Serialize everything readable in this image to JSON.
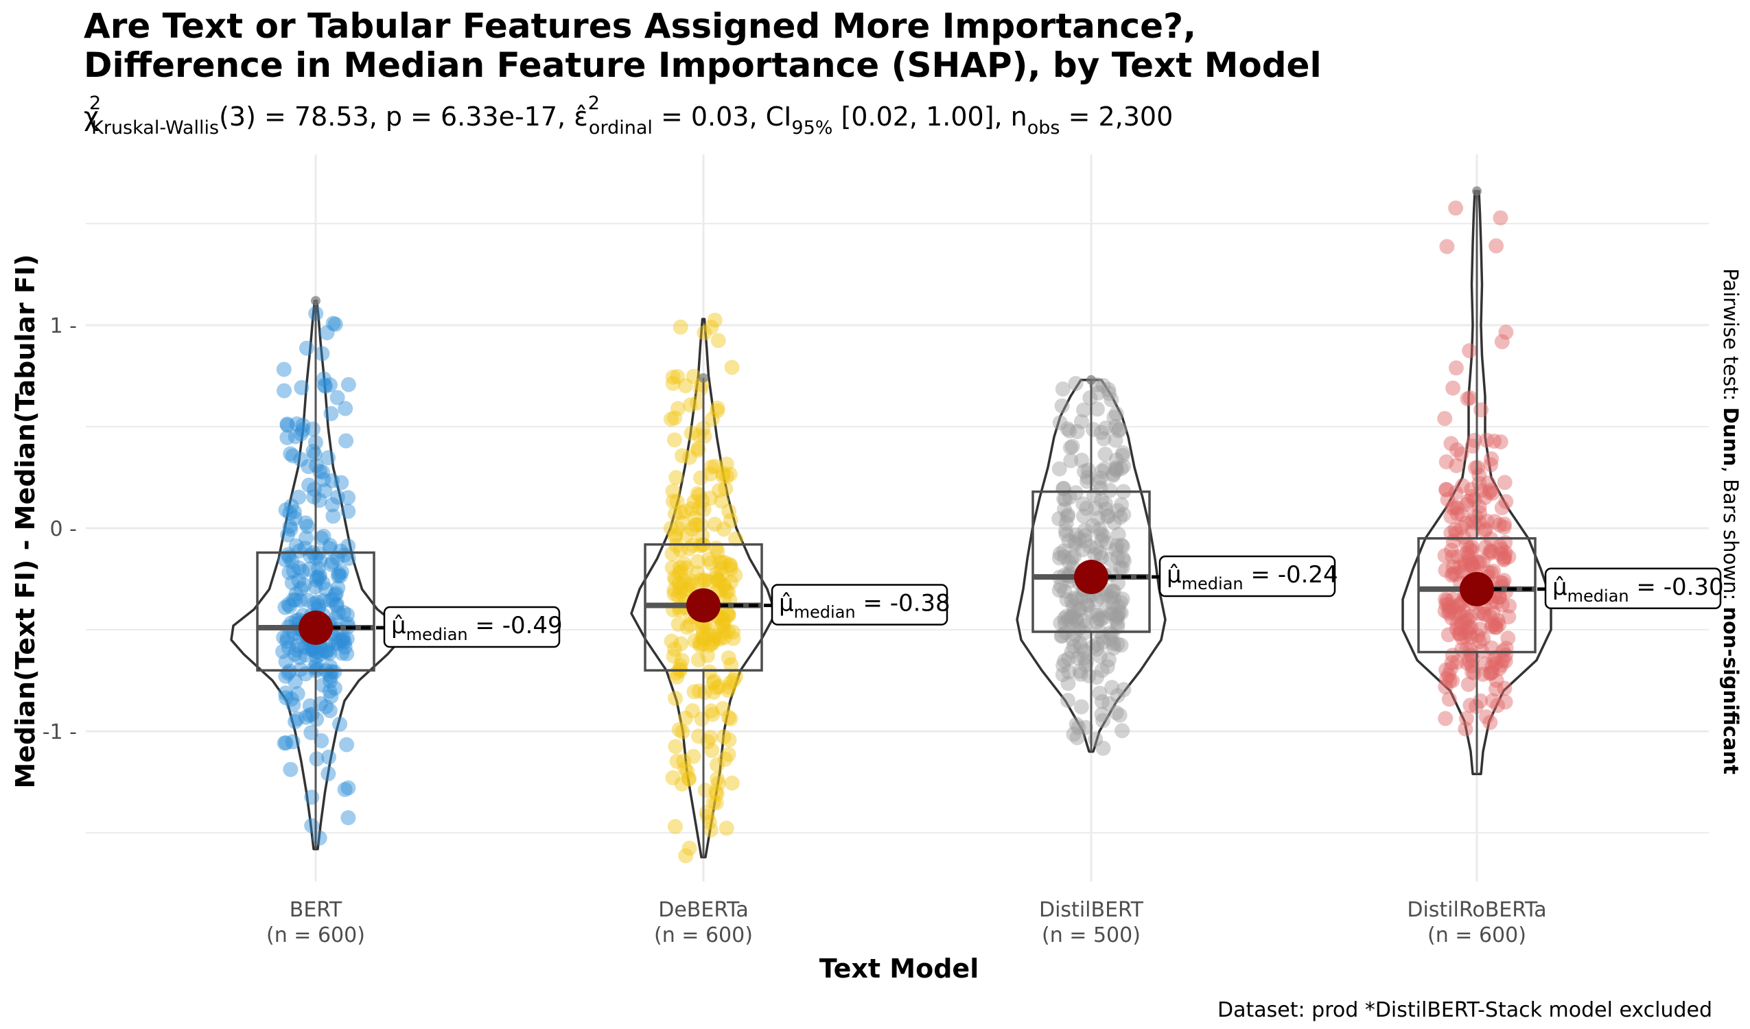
{
  "chart_data": {
    "type": "violin",
    "title_line1": "Are Text or Tabular Features Assigned More Importance?,",
    "title_line2": "Difference in Median Feature Importance (SHAP), by Text Model",
    "subtitle": {
      "chi": "χ",
      "chi_sup": "2",
      "test_sub": "Kruskal-Wallis",
      "stat": "(3) = 78.53, p = 6.33e-17, ",
      "eps": "ε̂",
      "eps_sup": "2",
      "eps_sub": "ordinal",
      "eps_val": " = 0.03, CI",
      "ci_sub": "95%",
      "ci_val": " [0.02, 1.00], n",
      "n_sub": "obs",
      "n_val": " = 2,300"
    },
    "xlabel": "Text Model",
    "ylabel": "Median(Text FI) - Median(Tabular FI)",
    "ylim": [
      -1.75,
      1.75
    ],
    "yticks": [
      -1,
      0,
      1
    ],
    "ytick_labels": [
      "-1 -",
      "0 -",
      "1 -"
    ],
    "grid": true,
    "side_label": {
      "prefix": "Pairwise test: ",
      "test": "Dunn",
      "middle": ", Bars shown: ",
      "bars": "non-significant"
    },
    "caption": "Dataset:  prod *DistilBERT-Stack model excluded",
    "median_label_prefix": "μ̂",
    "median_label_sub": "median",
    "groups": [
      {
        "name": "BERT",
        "n_label": "(n = 600)",
        "color": "#2F8FD8",
        "median": -0.49,
        "median_label": " = -0.49",
        "q1": -0.7,
        "q3": -0.12,
        "whisker_low": -1.58,
        "whisker_high": 1.12,
        "min": -1.58,
        "max": 1.12,
        "density": [
          [
            -1.58,
            0.02
          ],
          [
            -1.45,
            0.05
          ],
          [
            -1.3,
            0.09
          ],
          [
            -1.15,
            0.14
          ],
          [
            -1.0,
            0.2
          ],
          [
            -0.85,
            0.28
          ],
          [
            -0.75,
            0.42
          ],
          [
            -0.62,
            0.7
          ],
          [
            -0.55,
            0.82
          ],
          [
            -0.48,
            0.8
          ],
          [
            -0.4,
            0.6
          ],
          [
            -0.3,
            0.45
          ],
          [
            -0.15,
            0.36
          ],
          [
            0.0,
            0.3
          ],
          [
            0.15,
            0.24
          ],
          [
            0.3,
            0.17
          ],
          [
            0.5,
            0.12
          ],
          [
            0.7,
            0.09
          ],
          [
            0.9,
            0.05
          ],
          [
            1.05,
            0.025
          ],
          [
            1.12,
            0.01
          ]
        ],
        "jitter_seed": 11
      },
      {
        "name": "DeBERTa",
        "n_label": "(n = 600)",
        "color": "#F2C516",
        "median": -0.38,
        "median_label": " = -0.38",
        "q1": -0.7,
        "q3": -0.08,
        "whisker_low": -1.62,
        "whisker_high": 0.74,
        "min": -1.62,
        "max": 1.03,
        "density": [
          [
            -1.62,
            0.02
          ],
          [
            -1.5,
            0.06
          ],
          [
            -1.35,
            0.11
          ],
          [
            -1.2,
            0.16
          ],
          [
            -1.0,
            0.2
          ],
          [
            -0.85,
            0.26
          ],
          [
            -0.7,
            0.36
          ],
          [
            -0.55,
            0.56
          ],
          [
            -0.42,
            0.7
          ],
          [
            -0.3,
            0.62
          ],
          [
            -0.15,
            0.45
          ],
          [
            0.0,
            0.32
          ],
          [
            0.15,
            0.24
          ],
          [
            0.3,
            0.18
          ],
          [
            0.45,
            0.13
          ],
          [
            0.6,
            0.09
          ],
          [
            0.75,
            0.05
          ],
          [
            0.9,
            0.03
          ],
          [
            1.03,
            0.01
          ]
        ],
        "jitter_seed": 23
      },
      {
        "name": "DistilBERT",
        "n_label": "(n = 500)",
        "color": "#9E9E9E",
        "median": -0.24,
        "median_label": " = -0.24",
        "q1": -0.51,
        "q3": 0.18,
        "whisker_low": -1.1,
        "whisker_high": 0.73,
        "min": -1.1,
        "max": 0.73,
        "density": [
          [
            -1.1,
            0.02
          ],
          [
            -1.0,
            0.08
          ],
          [
            -0.85,
            0.25
          ],
          [
            -0.7,
            0.48
          ],
          [
            -0.55,
            0.68
          ],
          [
            -0.45,
            0.72
          ],
          [
            -0.3,
            0.66
          ],
          [
            -0.15,
            0.62
          ],
          [
            0.0,
            0.57
          ],
          [
            0.15,
            0.5
          ],
          [
            0.3,
            0.42
          ],
          [
            0.45,
            0.36
          ],
          [
            0.55,
            0.3
          ],
          [
            0.65,
            0.2
          ],
          [
            0.73,
            0.1
          ]
        ],
        "jitter_seed": 37
      },
      {
        "name": "DistilRoBERTa",
        "n_label": "(n = 600)",
        "color": "#E06666",
        "median": -0.3,
        "median_label": " = -0.30",
        "q1": -0.61,
        "q3": -0.05,
        "whisker_low": -1.21,
        "whisker_high": 1.66,
        "min": -1.21,
        "max": 1.66,
        "density": [
          [
            -1.21,
            0.04
          ],
          [
            -1.1,
            0.06
          ],
          [
            -0.95,
            0.12
          ],
          [
            -0.8,
            0.26
          ],
          [
            -0.65,
            0.58
          ],
          [
            -0.5,
            0.72
          ],
          [
            -0.35,
            0.72
          ],
          [
            -0.2,
            0.62
          ],
          [
            -0.05,
            0.5
          ],
          [
            0.1,
            0.3
          ],
          [
            0.25,
            0.14
          ],
          [
            0.45,
            0.08
          ],
          [
            0.65,
            0.08
          ],
          [
            0.85,
            0.05
          ],
          [
            1.0,
            0.04
          ],
          [
            1.2,
            0.05
          ],
          [
            1.4,
            0.04
          ],
          [
            1.55,
            0.03
          ],
          [
            1.66,
            0.02
          ]
        ],
        "jitter_seed": 51
      }
    ]
  }
}
